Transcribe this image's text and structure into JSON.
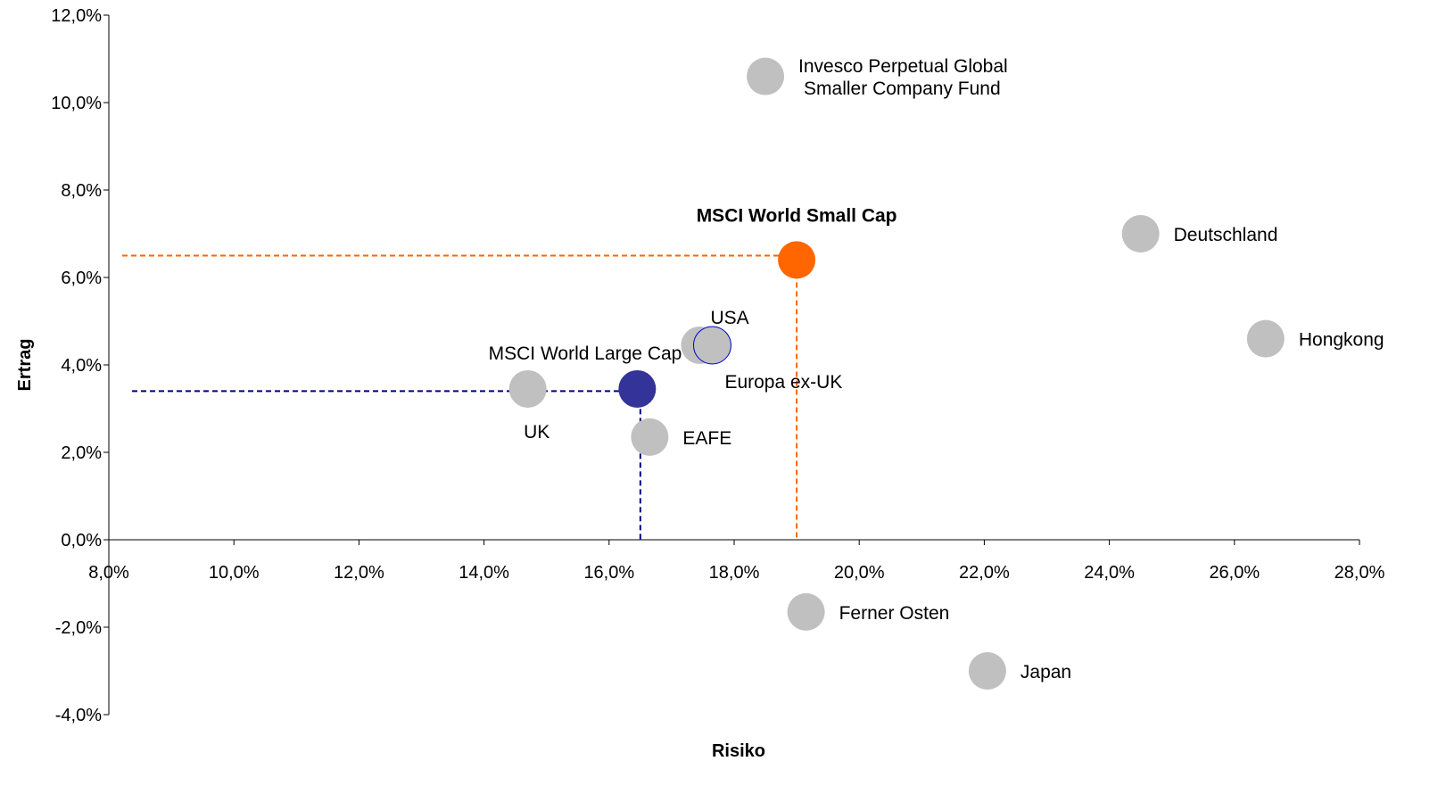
{
  "chart_data": {
    "type": "scatter",
    "title": "",
    "xlabel": "Risiko",
    "ylabel": "Ertrag",
    "xlim": [
      0.08,
      0.28
    ],
    "ylim": [
      -0.04,
      0.12
    ],
    "xticks": [
      0.08,
      0.1,
      0.12,
      0.14,
      0.16,
      0.18,
      0.2,
      0.22,
      0.24,
      0.26,
      0.28
    ],
    "xtick_labels": [
      "8,0%",
      "10,0%",
      "12,0%",
      "14,0%",
      "16,0%",
      "18,0%",
      "20,0%",
      "22,0%",
      "24,0%",
      "26,0%",
      "28,0%"
    ],
    "yticks": [
      -0.04,
      -0.02,
      0.0,
      0.02,
      0.04,
      0.06,
      0.08,
      0.1,
      0.12
    ],
    "ytick_labels": [
      "-4,0%",
      "-2,0%",
      "0,0%",
      "2,0%",
      "4,0%",
      "6,0%",
      "8,0%",
      "10,0%",
      "12,0%"
    ],
    "grid": false,
    "colors": {
      "neutral": "#c0c0c0",
      "highlight_small": "#ff6600",
      "highlight_large": "#333399",
      "europa_outline": "#0000cc"
    },
    "points": [
      {
        "label_lines": [
          "Invesco Perpetual Global",
          "Smaller Company Fund"
        ],
        "x": 0.185,
        "y": 0.106,
        "color": "#c0c0c0",
        "label_pos": "right",
        "bold": false
      },
      {
        "label_lines": [
          "MSCI World Small Cap"
        ],
        "x": 0.19,
        "y": 0.064,
        "color": "#ff6600",
        "label_pos": "top",
        "bold": true
      },
      {
        "label_lines": [
          "Deutschland"
        ],
        "x": 0.245,
        "y": 0.07,
        "color": "#c0c0c0",
        "label_pos": "right",
        "bold": false
      },
      {
        "label_lines": [
          "Hongkong"
        ],
        "x": 0.265,
        "y": 0.046,
        "color": "#c0c0c0",
        "label_pos": "right",
        "bold": false
      },
      {
        "label_lines": [
          "USA"
        ],
        "x": 0.1745,
        "y": 0.0445,
        "color": "#c0c0c0",
        "label_pos": "top-right",
        "bold": false
      },
      {
        "label_lines": [
          "Europa ex-UK"
        ],
        "x": 0.1765,
        "y": 0.0445,
        "color": "#c0c0c0",
        "outline": "#0000cc",
        "label_pos": "bottom-right",
        "bold": false
      },
      {
        "label_lines": [
          "MSCI World Large Cap"
        ],
        "x": 0.1645,
        "y": 0.0345,
        "color": "#333399",
        "label_pos": "top",
        "bold": false
      },
      {
        "label_lines": [
          "UK"
        ],
        "x": 0.147,
        "y": 0.0345,
        "color": "#c0c0c0",
        "label_pos": "bottom",
        "bold": false
      },
      {
        "label_lines": [
          "EAFE"
        ],
        "x": 0.1665,
        "y": 0.0235,
        "color": "#c0c0c0",
        "label_pos": "right",
        "bold": false
      },
      {
        "label_lines": [
          "Ferner Osten"
        ],
        "x": 0.1915,
        "y": -0.0165,
        "color": "#c0c0c0",
        "label_pos": "right",
        "bold": false
      },
      {
        "label_lines": [
          "Japan"
        ],
        "x": 0.2205,
        "y": -0.03,
        "color": "#c0c0c0",
        "label_pos": "right",
        "bold": false
      }
    ],
    "reference_lines": [
      {
        "color": "#ff6600",
        "x": 0.19,
        "y": 0.065
      },
      {
        "color": "#000080",
        "x": 0.165,
        "y": 0.034
      }
    ]
  }
}
